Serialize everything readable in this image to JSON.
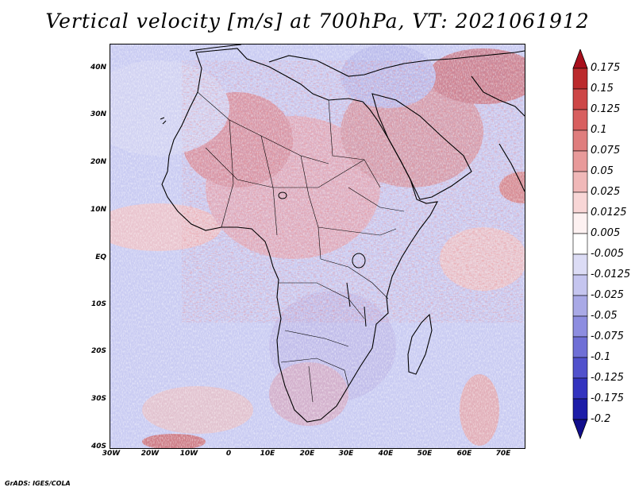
{
  "title": "Vertical velocity [m/s] at 700hPa, VT: 2021061912",
  "credit": "GrADS: IGES/COLA",
  "map": {
    "type": "map",
    "lon_range": [
      -30,
      76
    ],
    "lat_range": [
      -40,
      45
    ],
    "x_ticks": [
      "30W",
      "20W",
      "10W",
      "0",
      "10E",
      "20E",
      "30E",
      "40E",
      "50E",
      "60E",
      "70E"
    ],
    "x_tick_values": [
      -30,
      -20,
      -10,
      0,
      10,
      20,
      30,
      40,
      50,
      60,
      70
    ],
    "y_ticks": [
      "40N",
      "30N",
      "20N",
      "10N",
      "EQ",
      "10S",
      "20S",
      "30S",
      "40S"
    ],
    "y_tick_values": [
      40,
      30,
      20,
      10,
      0,
      -10,
      -20,
      -30,
      -40
    ],
    "colors": {
      "background": "#c7c8f4",
      "coast": "#000000"
    }
  },
  "colorbar": {
    "labels": [
      "0.175",
      "0.15",
      "0.125",
      "0.1",
      "0.075",
      "0.05",
      "0.025",
      "0.0125",
      "0.005",
      "-0.005",
      "-0.0125",
      "-0.025",
      "-0.05",
      "-0.075",
      "-0.1",
      "-0.125",
      "-0.175",
      "-0.2"
    ],
    "colors": [
      "#a80f1c",
      "#bb2a2c",
      "#cd4646",
      "#d85f5f",
      "#df7d7d",
      "#e89a9a",
      "#f0b8b8",
      "#f8d6d6",
      "#fdf1f1",
      "#ffffff",
      "#dcdcf5",
      "#c5c5ef",
      "#a9a9e6",
      "#8d8de0",
      "#6f6fd6",
      "#5151cc",
      "#3333bf",
      "#1d1da8",
      "#120e8c"
    ]
  }
}
